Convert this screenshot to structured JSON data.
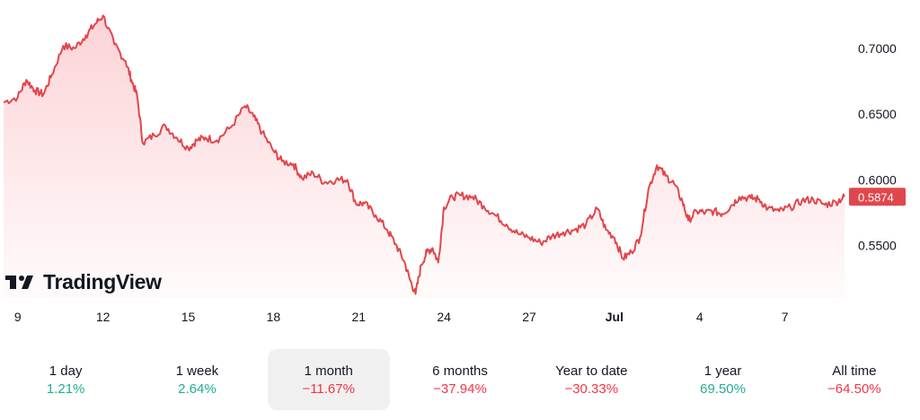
{
  "brand": {
    "name": "TradingView"
  },
  "colors": {
    "line": "#e0474c",
    "positive": "#22ab94",
    "negative": "#f23645",
    "badge": "#e0474c"
  },
  "current_price_label": "0.5874",
  "periods": [
    {
      "label": "1 day",
      "value": "1.21%",
      "direction": "positive"
    },
    {
      "label": "1 week",
      "value": "2.64%",
      "direction": "positive"
    },
    {
      "label": "1 month",
      "value": "−11.67%",
      "direction": "negative",
      "active": true
    },
    {
      "label": "6 months",
      "value": "−37.94%",
      "direction": "negative"
    },
    {
      "label": "Year to date",
      "value": "−30.33%",
      "direction": "negative"
    },
    {
      "label": "1 year",
      "value": "69.50%",
      "direction": "positive"
    },
    {
      "label": "All time",
      "value": "−64.50%",
      "direction": "negative"
    }
  ],
  "chart_data": {
    "type": "area",
    "y_ticks": [
      "0.7000",
      "0.6500",
      "0.6000",
      "0.5500"
    ],
    "y_tick_values": [
      0.7,
      0.65,
      0.6,
      0.55
    ],
    "ylim": [
      0.51,
      0.73
    ],
    "x_ticks": [
      {
        "label": "9",
        "day": 0,
        "bold": false
      },
      {
        "label": "12",
        "day": 3,
        "bold": false
      },
      {
        "label": "15",
        "day": 6,
        "bold": false
      },
      {
        "label": "18",
        "day": 9,
        "bold": false
      },
      {
        "label": "21",
        "day": 12,
        "bold": false
      },
      {
        "label": "24",
        "day": 15,
        "bold": false
      },
      {
        "label": "27",
        "day": 18,
        "bold": false
      },
      {
        "label": "Jul",
        "day": 21,
        "bold": true
      },
      {
        "label": "4",
        "day": 24,
        "bold": false
      },
      {
        "label": "7",
        "day": 27,
        "bold": false
      }
    ],
    "xlim": [
      -0.5,
      29.1
    ],
    "series": [
      {
        "x": [
          -0.5,
          0.0,
          0.3,
          0.6,
          0.9,
          1.2,
          1.6,
          2.0,
          2.4,
          2.7,
          3.0,
          3.4,
          3.8,
          4.0,
          4.2,
          4.4,
          4.8,
          5.2,
          5.6,
          6.0,
          6.3,
          6.6,
          7.0,
          7.5,
          8.0,
          8.3,
          8.6,
          9.0,
          9.3,
          9.7,
          10.0,
          10.4,
          10.8,
          11.2,
          11.6,
          11.9,
          12.2,
          12.6,
          13.0,
          13.3,
          13.6,
          13.8,
          14.0,
          14.2,
          14.4,
          14.6,
          14.8,
          15.0,
          15.3,
          15.6,
          16.0,
          16.4,
          16.8,
          17.2,
          17.6,
          18.0,
          18.4,
          18.8,
          19.2,
          19.6,
          20.0,
          20.4,
          20.7,
          21.0,
          21.3,
          21.6,
          21.9,
          22.2,
          22.5,
          22.8,
          23.1,
          23.4,
          23.6,
          23.9,
          24.2,
          24.5,
          24.8,
          25.1,
          25.4,
          25.8,
          26.1,
          26.4,
          26.8,
          27.2,
          27.6,
          28.0,
          28.4,
          28.8,
          29.1
        ],
        "y": [
          0.659,
          0.663,
          0.676,
          0.668,
          0.665,
          0.68,
          0.702,
          0.7,
          0.71,
          0.718,
          0.725,
          0.703,
          0.69,
          0.676,
          0.664,
          0.628,
          0.634,
          0.641,
          0.632,
          0.624,
          0.63,
          0.632,
          0.63,
          0.64,
          0.656,
          0.648,
          0.636,
          0.622,
          0.614,
          0.612,
          0.601,
          0.605,
          0.598,
          0.6,
          0.6,
          0.582,
          0.582,
          0.573,
          0.562,
          0.551,
          0.538,
          0.524,
          0.513,
          0.535,
          0.545,
          0.548,
          0.537,
          0.579,
          0.587,
          0.588,
          0.587,
          0.58,
          0.573,
          0.566,
          0.559,
          0.556,
          0.552,
          0.557,
          0.56,
          0.562,
          0.566,
          0.578,
          0.562,
          0.556,
          0.54,
          0.545,
          0.556,
          0.593,
          0.611,
          0.603,
          0.597,
          0.583,
          0.569,
          0.576,
          0.575,
          0.576,
          0.574,
          0.58,
          0.587,
          0.586,
          0.585,
          0.578,
          0.576,
          0.579,
          0.584,
          0.585,
          0.581,
          0.583,
          0.587
        ]
      }
    ]
  }
}
